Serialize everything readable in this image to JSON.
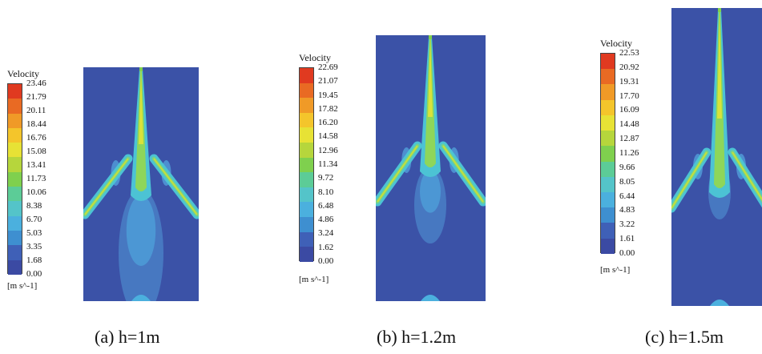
{
  "colors": {
    "background_field": "#3b52a7",
    "scale": [
      "#3b4aa3",
      "#3f60b7",
      "#3e8fd0",
      "#4bb0de",
      "#54c4c9",
      "#5ccc97",
      "#7fd04e",
      "#b6d63c",
      "#e7e235",
      "#f4c52b",
      "#f09a27",
      "#e96a23",
      "#e03a20"
    ]
  },
  "panels": [
    {
      "legend_title": "Velocity",
      "ticks": [
        "23.46",
        "21.79",
        "20.11",
        "18.44",
        "16.76",
        "15.08",
        "13.41",
        "11.73",
        "10.06",
        "8.38",
        "6.70",
        "5.03",
        "3.35",
        "1.68",
        "0.00"
      ],
      "units": "[m s^-1]",
      "caption": "(a) h=1m"
    },
    {
      "legend_title": "Velocity",
      "ticks": [
        "22.69",
        "21.07",
        "19.45",
        "17.82",
        "16.20",
        "14.58",
        "12.96",
        "11.34",
        "9.72",
        "8.10",
        "6.48",
        "4.86",
        "3.24",
        "1.62",
        "0.00"
      ],
      "units": "[m s^-1]",
      "caption": "(b) h=1.2m"
    },
    {
      "legend_title": "Velocity",
      "ticks": [
        "22.53",
        "20.92",
        "19.31",
        "17.70",
        "16.09",
        "14.48",
        "12.87",
        "11.26",
        "9.66",
        "8.05",
        "6.44",
        "4.83",
        "3.22",
        "1.61",
        "0.00"
      ],
      "units": "[m s^-1]",
      "caption": "(c) h=1.5m"
    }
  ]
}
